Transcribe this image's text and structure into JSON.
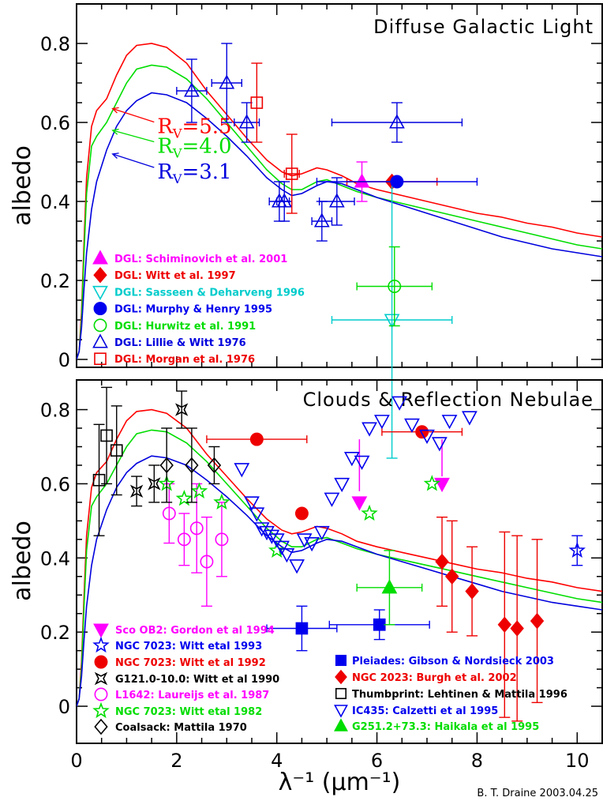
{
  "chart_data": [
    {
      "type": "line",
      "title": "Diffuse Galactic Light",
      "ylabel": "albedo",
      "xlabel": "",
      "xlim": [
        0,
        10.5
      ],
      "ylim": [
        -0.02,
        0.9
      ],
      "yticks": [
        "0",
        "0.2",
        "0.4",
        "0.6",
        "0.8"
      ],
      "xticks": [
        "0",
        "2",
        "4",
        "6",
        "8",
        "10"
      ],
      "grid": "off",
      "legend": "bottom-left",
      "model_curves": [
        {
          "name": "R_V=5.5",
          "label": "R",
          "sub": "V",
          "eq": "=5.5",
          "color": "#ff0000",
          "label_arrow_to": [
            0.6,
            0.64
          ],
          "x": [
            0,
            0.05,
            0.1,
            0.15,
            0.2,
            0.3,
            0.4,
            0.6,
            0.8,
            1.0,
            1.2,
            1.5,
            1.8,
            2.2,
            2.6,
            3.0,
            3.4,
            3.8,
            4.1,
            4.3,
            4.5,
            4.8,
            5.0,
            5.3,
            5.6,
            6.0,
            6.5,
            7.0,
            7.5,
            8.0,
            8.5,
            9.0,
            9.5,
            10.0,
            10.5
          ],
          "y": [
            0,
            0.02,
            0.12,
            0.3,
            0.46,
            0.59,
            0.63,
            0.66,
            0.72,
            0.77,
            0.795,
            0.8,
            0.79,
            0.75,
            0.68,
            0.62,
            0.56,
            0.505,
            0.475,
            0.465,
            0.47,
            0.485,
            0.48,
            0.465,
            0.445,
            0.43,
            0.415,
            0.4,
            0.385,
            0.37,
            0.36,
            0.345,
            0.335,
            0.32,
            0.31
          ]
        },
        {
          "name": "R_V=4.0",
          "label": "R",
          "sub": "V",
          "eq": "=4.0",
          "color": "#00dd00",
          "label_arrow_to": [
            0.6,
            0.58
          ],
          "x": [
            0,
            0.05,
            0.1,
            0.15,
            0.2,
            0.3,
            0.4,
            0.6,
            0.8,
            1.0,
            1.2,
            1.5,
            1.8,
            2.2,
            2.6,
            3.0,
            3.4,
            3.8,
            4.1,
            4.3,
            4.5,
            4.8,
            5.0,
            5.3,
            5.6,
            6.0,
            6.5,
            7.0,
            7.5,
            8.0,
            8.5,
            9.0,
            9.5,
            10.0,
            10.5
          ],
          "y": [
            0,
            0.02,
            0.1,
            0.27,
            0.42,
            0.54,
            0.565,
            0.6,
            0.65,
            0.7,
            0.735,
            0.745,
            0.74,
            0.71,
            0.66,
            0.6,
            0.54,
            0.48,
            0.445,
            0.43,
            0.43,
            0.45,
            0.455,
            0.44,
            0.425,
            0.41,
            0.395,
            0.38,
            0.365,
            0.35,
            0.335,
            0.32,
            0.305,
            0.29,
            0.28
          ]
        },
        {
          "name": "R_V=3.1",
          "label": "R",
          "sub": "V",
          "eq": "=3.1",
          "color": "#0000dd",
          "label_arrow_to": [
            0.6,
            0.52
          ],
          "x": [
            0,
            0.05,
            0.1,
            0.15,
            0.2,
            0.3,
            0.4,
            0.6,
            0.8,
            1.0,
            1.2,
            1.5,
            1.8,
            2.2,
            2.6,
            3.0,
            3.4,
            3.8,
            4.1,
            4.3,
            4.5,
            4.8,
            5.0,
            5.3,
            5.6,
            6.0,
            6.5,
            7.0,
            7.5,
            8.0,
            8.5,
            9.0,
            9.5,
            10.0,
            10.5
          ],
          "y": [
            0,
            0.02,
            0.08,
            0.18,
            0.27,
            0.38,
            0.45,
            0.53,
            0.59,
            0.63,
            0.655,
            0.675,
            0.67,
            0.65,
            0.61,
            0.565,
            0.515,
            0.46,
            0.43,
            0.415,
            0.42,
            0.44,
            0.45,
            0.445,
            0.43,
            0.41,
            0.39,
            0.37,
            0.35,
            0.33,
            0.31,
            0.295,
            0.28,
            0.27,
            0.26
          ]
        }
      ],
      "series": [
        {
          "name": "DGL: Schiminovich et al. 2001",
          "color": "#ff00ff",
          "marker": "tri-up-filled",
          "points": [
            [
              5.7,
              0.45,
              0,
              0.05
            ]
          ]
        },
        {
          "name": "DGL: Witt et al. 1997",
          "color": "#ee0000",
          "marker": "diamond-filled",
          "points": [
            [
              6.3,
              0.45,
              0.9,
              0
            ]
          ]
        },
        {
          "name": "DGL: Sasseen & Deharveng 1996",
          "color": "#00cccc",
          "marker": "tri-down-open",
          "points": [
            [
              6.3,
              0.1,
              1.2,
              0.35
            ]
          ]
        },
        {
          "name": "DGL: Murphy & Henry 1995",
          "color": "#0000ee",
          "marker": "circle-filled",
          "points": [
            [
              6.4,
              0.45,
              1.6,
              0
            ]
          ]
        },
        {
          "name": "DGL: Hurwitz et al. 1991",
          "color": "#00dd00",
          "marker": "circle-open",
          "points": [
            [
              6.35,
              0.185,
              0.75,
              0.1
            ]
          ]
        },
        {
          "name": "DGL: Lillie & Witt 1976",
          "color": "#0000dd",
          "marker": "tri-up-open",
          "points": [
            [
              2.3,
              0.68,
              0.3,
              0.08
            ],
            [
              3.0,
              0.7,
              0.3,
              0.1
            ],
            [
              3.4,
              0.6,
              0.25,
              0.05
            ],
            [
              4.05,
              0.4,
              0.2,
              0.05
            ],
            [
              4.15,
              0.4,
              0.15,
              0.05
            ],
            [
              4.9,
              0.35,
              0.2,
              0.05
            ],
            [
              5.2,
              0.4,
              0.35,
              0.06
            ],
            [
              6.4,
              0.6,
              1.3,
              0.05
            ]
          ]
        },
        {
          "name": "DGL: Morgan et al. 1976",
          "color": "#ee0000",
          "marker": "square-open",
          "points": [
            [
              3.6,
              0.65,
              0,
              0.1
            ],
            [
              4.3,
              0.47,
              0.15,
              0.1
            ]
          ]
        }
      ],
      "annotations": []
    },
    {
      "type": "scatter",
      "title": "Clouds & Reflection Nebulae",
      "ylabel": "albedo",
      "xlabel": "λ⁻¹ (μm⁻¹)",
      "xlim": [
        0,
        10.5
      ],
      "ylim": [
        -0.1,
        0.88
      ],
      "yticks": [
        "0",
        "0.2",
        "0.4",
        "0.6",
        "0.8"
      ],
      "xticks": [
        "0",
        "2",
        "4",
        "6",
        "8",
        "10"
      ],
      "grid": "off",
      "legend": "bottom-left",
      "model_curves": [
        "R_V=5.5",
        "R_V=4.0",
        "R_V=3.1"
      ],
      "series": [
        {
          "name": "Sco OB2: Gordon et al 1994",
          "color": "#ff00ff",
          "marker": "tri-down-filled",
          "points": [
            [
              5.65,
              0.55,
              0,
              0
            ],
            [
              7.3,
              0.6,
              0,
              0
            ]
          ],
          "arrows": [
            [
              5.65,
              0.72,
              5.65,
              0.58
            ],
            [
              7.3,
              0.72,
              7.3,
              0.62
            ]
          ]
        },
        {
          "name": "NGC 7023: Witt etal 1993",
          "color": "#0000ee",
          "marker": "star-open",
          "points": [
            [
              10.0,
              0.42,
              0,
              0.04
            ]
          ]
        },
        {
          "name": "NGC 7023: Witt et al 1992",
          "color": "#ee0000",
          "marker": "circle-filled",
          "points": [
            [
              3.6,
              0.72,
              1.0,
              0
            ],
            [
              4.5,
              0.52,
              0,
              0
            ],
            [
              6.9,
              0.74,
              0.8,
              0
            ]
          ]
        },
        {
          "name": "G121.0-10.0: Witt et al 1990",
          "color": "#000000",
          "marker": "star4-open",
          "points": [
            [
              1.2,
              0.58,
              0,
              0.04
            ],
            [
              1.55,
              0.6,
              0,
              0.05
            ],
            [
              2.1,
              0.8,
              0,
              0.05
            ]
          ]
        },
        {
          "name": "L1642: Laureijs et al. 1987",
          "color": "#ff00ff",
          "marker": "circle-open",
          "points": [
            [
              1.85,
              0.52,
              0,
              0.08
            ],
            [
              2.15,
              0.45,
              0,
              0.07
            ],
            [
              2.4,
              0.48,
              0,
              0.12
            ],
            [
              2.6,
              0.39,
              0,
              0.12
            ],
            [
              2.9,
              0.45,
              0,
              0.1
            ]
          ]
        },
        {
          "name": "NGC 7023: Witt etal 1982",
          "color": "#00dd00",
          "marker": "star-open",
          "points": [
            [
              1.8,
              0.6,
              0,
              0
            ],
            [
              2.15,
              0.56,
              0,
              0
            ],
            [
              2.45,
              0.58,
              0,
              0
            ],
            [
              2.9,
              0.55,
              0,
              0
            ],
            [
              4.0,
              0.42,
              0,
              0
            ],
            [
              5.85,
              0.52,
              0,
              0
            ],
            [
              7.1,
              0.6,
              0,
              0
            ]
          ]
        },
        {
          "name": "Coalsack: Mattila 1970",
          "color": "#000000",
          "marker": "diamond-open",
          "points": [
            [
              1.8,
              0.65,
              0,
              0.1
            ],
            [
              2.3,
              0.65,
              0,
              0.1
            ],
            [
              2.75,
              0.65,
              0,
              0.05
            ]
          ]
        },
        {
          "name": "Pleiades: Gibson & Nordsieck 2003",
          "color": "#0000ee",
          "marker": "square-filled",
          "points": [
            [
              4.5,
              0.21,
              0.7,
              0.06
            ],
            [
              6.05,
              0.22,
              1.0,
              0.04
            ]
          ]
        },
        {
          "name": "NGC 2023: Burgh et al. 2002",
          "color": "#ee0000",
          "marker": "diamond-filled",
          "points": [
            [
              7.3,
              0.39,
              0,
              0.12
            ],
            [
              7.5,
              0.35,
              0,
              0.15
            ],
            [
              7.9,
              0.31,
              0,
              0.12
            ],
            [
              8.55,
              0.22,
              0,
              0.25
            ],
            [
              8.8,
              0.21,
              0,
              0.25
            ],
            [
              9.2,
              0.23,
              0,
              0.22
            ]
          ]
        },
        {
          "name": "Thumbprint: Lehtinen & Mattila 1996",
          "color": "#000000",
          "marker": "square-open",
          "points": [
            [
              0.45,
              0.61,
              0,
              0.15
            ],
            [
              0.6,
              0.73,
              0,
              0.13
            ],
            [
              0.8,
              0.69,
              0,
              0.12
            ]
          ]
        },
        {
          "name": "IC435: Calzetti et al 1995",
          "color": "#0000ee",
          "marker": "tri-down-open",
          "points": [
            [
              3.3,
              0.64,
              0,
              0
            ],
            [
              3.5,
              0.55,
              0,
              0
            ],
            [
              3.6,
              0.52,
              0,
              0
            ],
            [
              3.7,
              0.48,
              0,
              0
            ],
            [
              3.8,
              0.47,
              0,
              0
            ],
            [
              3.9,
              0.46,
              0,
              0
            ],
            [
              4.0,
              0.45,
              0,
              0
            ],
            [
              4.1,
              0.43,
              0,
              0
            ],
            [
              4.2,
              0.41,
              0,
              0
            ],
            [
              4.4,
              0.38,
              0,
              0
            ],
            [
              4.55,
              0.45,
              0,
              0
            ],
            [
              4.7,
              0.44,
              0,
              0
            ],
            [
              4.9,
              0.47,
              0,
              0
            ],
            [
              5.1,
              0.56,
              0,
              0
            ],
            [
              5.3,
              0.6,
              0,
              0
            ],
            [
              5.5,
              0.67,
              0,
              0
            ],
            [
              5.7,
              0.66,
              0,
              0
            ],
            [
              5.85,
              0.75,
              0,
              0
            ],
            [
              6.1,
              0.77,
              0,
              0
            ],
            [
              6.45,
              0.82,
              0,
              0
            ],
            [
              6.7,
              0.76,
              0,
              0
            ],
            [
              7.0,
              0.73,
              0,
              0
            ],
            [
              7.25,
              0.71,
              0,
              0
            ],
            [
              7.45,
              0.77,
              0,
              0
            ],
            [
              7.85,
              0.78,
              0,
              0
            ]
          ]
        },
        {
          "name": "G251.2+73.3: Haikala et al 1995",
          "color": "#00dd00",
          "marker": "tri-up-filled",
          "points": [
            [
              6.25,
              0.32,
              0.65,
              0.1
            ]
          ]
        }
      ],
      "annotations": []
    }
  ],
  "credit": "B. T. Draine  2003.04.25",
  "xaxis_label": "λ⁻¹ (μm⁻¹)"
}
